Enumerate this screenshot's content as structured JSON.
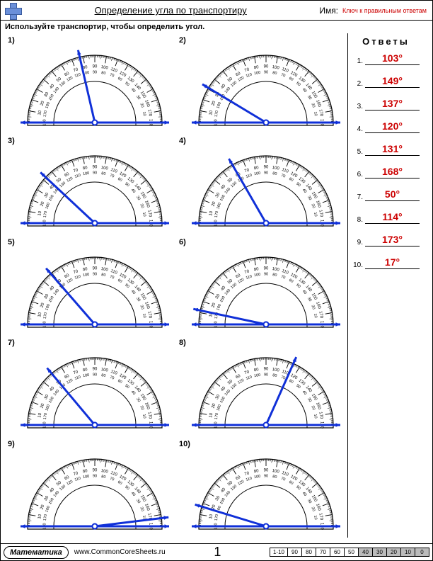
{
  "header": {
    "title": "Определение угла по транспортиру",
    "name_label": "Имя:",
    "key_label": "Ключ к правильным ответам"
  },
  "instruction": "Используйте транспортир, чтобы определить угол.",
  "answers_title": "Ответы",
  "protractor": {
    "outer_radius": 95,
    "inner_radius": 58,
    "tick_long": 10,
    "tick_short": 5,
    "stroke": "#000",
    "ray_color": "#1030d8",
    "ray_width": 3,
    "arrow_size": 7
  },
  "problems": [
    {
      "n": "1)",
      "angle": 103,
      "base": 180
    },
    {
      "n": "2)",
      "angle": 149,
      "base": 180
    },
    {
      "n": "3)",
      "angle": 137,
      "base": 180
    },
    {
      "n": "4)",
      "angle": 120,
      "base": 180
    },
    {
      "n": "5)",
      "angle": 131,
      "base": 180
    },
    {
      "n": "6)",
      "angle": 168,
      "base": 180
    },
    {
      "n": "7)",
      "angle": 50,
      "base": 0
    },
    {
      "n": "8)",
      "angle": 114,
      "base": 0
    },
    {
      "n": "9)",
      "angle": 173,
      "base": 0
    },
    {
      "n": "10)",
      "angle": 17,
      "base": 0
    }
  ],
  "answers": [
    {
      "n": "1.",
      "v": "103°"
    },
    {
      "n": "2.",
      "v": "149°"
    },
    {
      "n": "3.",
      "v": "137°"
    },
    {
      "n": "4.",
      "v": "120°"
    },
    {
      "n": "5.",
      "v": "131°"
    },
    {
      "n": "6.",
      "v": "168°"
    },
    {
      "n": "7.",
      "v": "50°"
    },
    {
      "n": "8.",
      "v": "114°"
    },
    {
      "n": "9.",
      "v": "173°"
    },
    {
      "n": "10.",
      "v": "17°"
    }
  ],
  "footer": {
    "subject": "Математика",
    "site": "www.CommonCoreSheets.ru",
    "page": "1",
    "score_header": [
      "1-10",
      "90",
      "80",
      "70",
      "60",
      "50",
      "40",
      "30",
      "20",
      "10",
      "0"
    ],
    "shaded_from": 6
  }
}
